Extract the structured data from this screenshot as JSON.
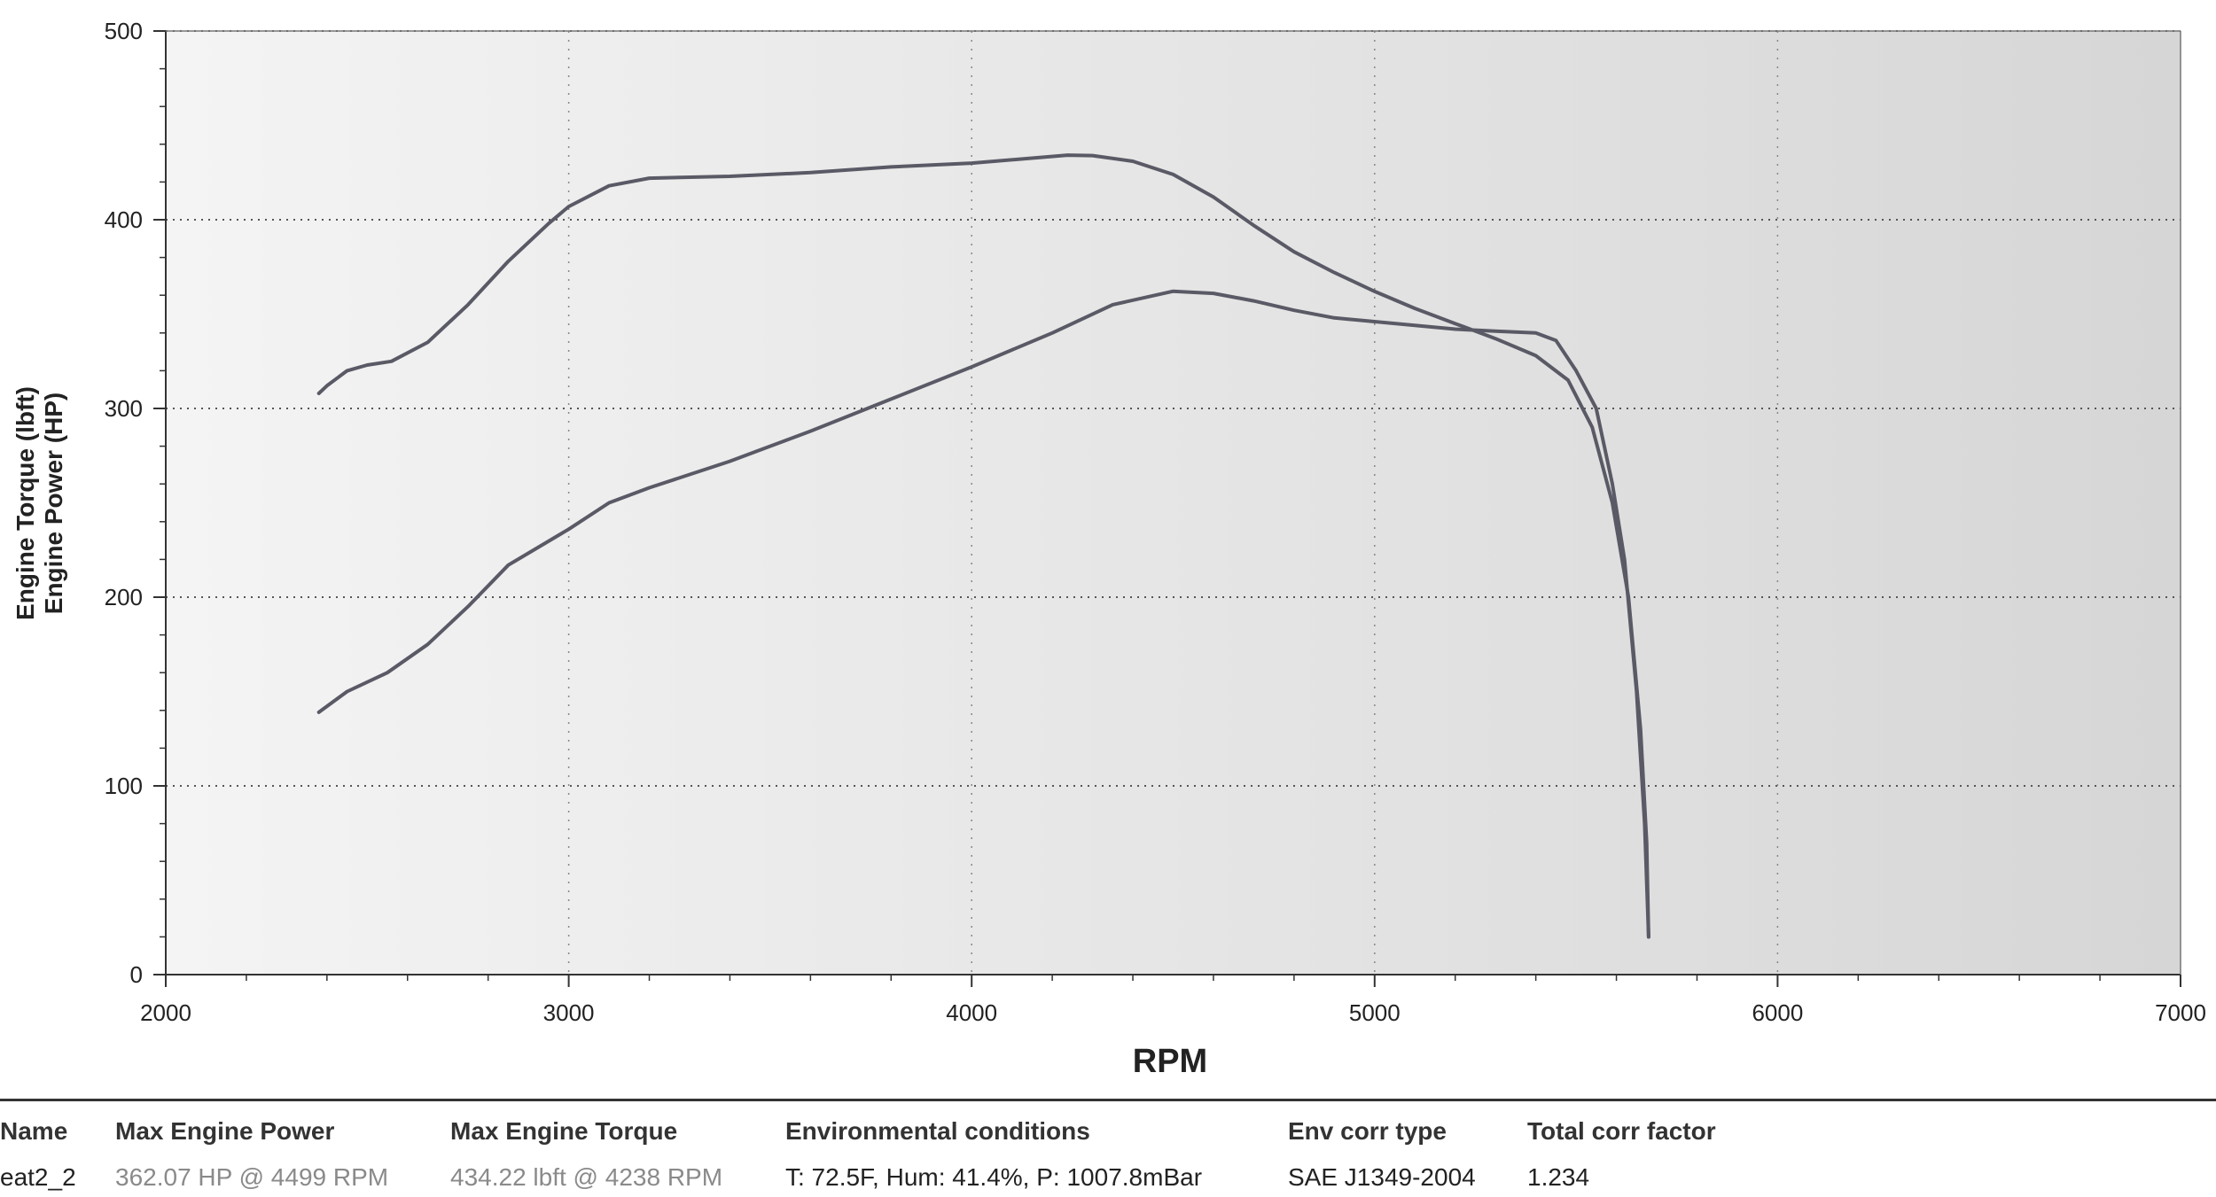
{
  "chart_data": {
    "type": "line",
    "title": "",
    "xlabel": "RPM",
    "ylabel_lines": [
      "Engine Torque (lbft)",
      "Engine Power (HP)"
    ],
    "xlim": [
      2000,
      7000
    ],
    "ylim": [
      0,
      500
    ],
    "x_ticks": [
      2000,
      3000,
      4000,
      5000,
      6000,
      7000
    ],
    "y_ticks": [
      0,
      100,
      200,
      300,
      400,
      500
    ],
    "grid": "dotted horizontal",
    "series": [
      {
        "color": "#5a5a66",
        "points": [
          [
            2380,
            308
          ],
          [
            2400,
            312
          ],
          [
            2450,
            320
          ],
          [
            2500,
            323
          ],
          [
            2560,
            325
          ],
          [
            2650,
            335
          ],
          [
            2750,
            355
          ],
          [
            2850,
            378
          ],
          [
            2950,
            398
          ],
          [
            3000,
            407
          ],
          [
            3100,
            418
          ],
          [
            3200,
            422
          ],
          [
            3400,
            423
          ],
          [
            3600,
            425
          ],
          [
            3800,
            428
          ],
          [
            4000,
            430
          ],
          [
            4238,
            434.22
          ],
          [
            4300,
            434
          ],
          [
            4400,
            431
          ],
          [
            4500,
            424
          ],
          [
            4600,
            412
          ],
          [
            4700,
            397
          ],
          [
            4800,
            383
          ],
          [
            4900,
            372
          ],
          [
            5000,
            362
          ],
          [
            5100,
            353
          ],
          [
            5200,
            345
          ],
          [
            5300,
            337
          ],
          [
            5400,
            328
          ],
          [
            5480,
            315
          ],
          [
            5540,
            290
          ],
          [
            5590,
            250
          ],
          [
            5630,
            200
          ],
          [
            5660,
            130
          ],
          [
            5675,
            70
          ],
          [
            5680,
            20
          ]
        ]
      },
      {
        "color": "#5a5a66",
        "points": [
          [
            2380,
            139
          ],
          [
            2450,
            150
          ],
          [
            2550,
            160
          ],
          [
            2650,
            175
          ],
          [
            2750,
            195
          ],
          [
            2850,
            217
          ],
          [
            3000,
            236
          ],
          [
            3100,
            250
          ],
          [
            3200,
            258
          ],
          [
            3400,
            272
          ],
          [
            3600,
            288
          ],
          [
            3800,
            305
          ],
          [
            4000,
            322
          ],
          [
            4200,
            340
          ],
          [
            4350,
            355
          ],
          [
            4499,
            362.07
          ],
          [
            4600,
            361
          ],
          [
            4700,
            357
          ],
          [
            4800,
            352
          ],
          [
            4900,
            348
          ],
          [
            5000,
            346
          ],
          [
            5100,
            344
          ],
          [
            5200,
            342
          ],
          [
            5300,
            341
          ],
          [
            5400,
            340
          ],
          [
            5450,
            336
          ],
          [
            5500,
            320
          ],
          [
            5550,
            300
          ],
          [
            5590,
            260
          ],
          [
            5620,
            220
          ],
          [
            5650,
            150
          ],
          [
            5670,
            80
          ],
          [
            5680,
            20
          ]
        ]
      }
    ]
  },
  "summary": {
    "headers": {
      "name": "Name",
      "max_power": "Max Engine Power",
      "max_torque": "Max Engine Torque",
      "env": "Environmental conditions",
      "corr_type": "Env corr type",
      "corr_factor": "Total corr factor"
    },
    "values": {
      "name": "eat2_2",
      "max_power": "362.07 HP @ 4499 RPM",
      "max_torque": "434.22 lbft @ 4238 RPM",
      "env": "T: 72.5F, Hum: 41.4%, P: 1007.8mBar",
      "corr_type": "SAE J1349-2004",
      "corr_factor": "1.234"
    }
  }
}
